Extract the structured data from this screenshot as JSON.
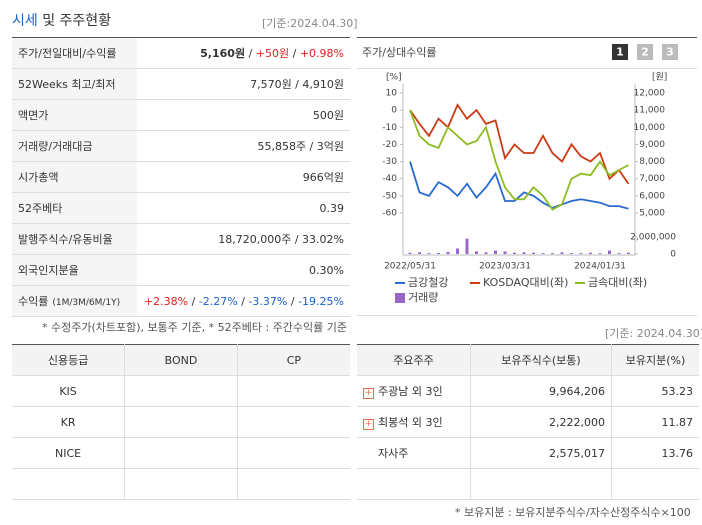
{
  "header": {
    "title_highlight": "시세",
    "title_rest": "및 주주현황",
    "date": "[기준:2024.04.30]"
  },
  "summary": {
    "rows": [
      {
        "label": [
          "주가/전일대비/수익률"
        ],
        "value": [
          "5,160원",
          " / ",
          "+50원",
          " / ",
          "+0.98%"
        ]
      },
      {
        "label": [
          "52Weeks 최고/최저"
        ],
        "value": [
          "7,570원 / 4,910원"
        ]
      },
      {
        "label": [
          "액면가"
        ],
        "value": [
          "500원"
        ]
      },
      {
        "label": [
          "거래량/거래대금"
        ],
        "value": [
          "55,858주 / 3억원"
        ]
      },
      {
        "label": [
          "시가총액"
        ],
        "value": [
          "966억원"
        ]
      },
      {
        "label": [
          "52주베타"
        ],
        "value": [
          "0.39"
        ]
      },
      {
        "label": [
          "발행주식수/유동비율"
        ],
        "value": [
          "18,720,000주 / 33.02%"
        ]
      },
      {
        "label": [
          "외국인지분율"
        ],
        "value": [
          "0.30%"
        ]
      },
      {
        "label": [
          "수익률",
          "(1M/3M/6M/1Y)"
        ],
        "value": [
          "+2.38%",
          " / ",
          "-2.27%",
          " / ",
          "-3.37%",
          " / ",
          "-19.25%"
        ]
      }
    ],
    "note": "* 수정주가(차트포함), 보통주 기준, * 52주베타 : 주간수익률 기준"
  },
  "chart_data": {
    "type": "line",
    "title": "주가/상대수익률",
    "buttons": [
      "1",
      "2",
      "3"
    ],
    "y_unit": "[%]",
    "y2_unit": "[원]",
    "categories": [
      "2022/05/31",
      null,
      null,
      null,
      null,
      null,
      null,
      null,
      null,
      null,
      "2023/03/31",
      null,
      null,
      null,
      null,
      null,
      null,
      null,
      null,
      null,
      "2024/01/31",
      null,
      null,
      null
    ],
    "series": [
      {
        "name": "금강철강",
        "color": "#2a6ad0",
        "axis": "y2",
        "values": [
          8000,
          6200,
          6000,
          6800,
          6500,
          6000,
          6700,
          5900,
          6500,
          7300,
          5700,
          5700,
          6200,
          6000,
          5600,
          5300,
          5500,
          5700,
          5800,
          5700,
          5600,
          5400,
          5400,
          5250
        ]
      },
      {
        "name": "KOSDAQ대비(좌)",
        "color": "#cc3a14",
        "values": [
          0,
          -8,
          -15,
          -5,
          -10,
          3,
          -5,
          0,
          -8,
          -6,
          -28,
          -20,
          -25,
          -25,
          -15,
          -25,
          -30,
          -20,
          -27,
          -30,
          -25,
          -40,
          -35,
          -43
        ]
      },
      {
        "name": "금속대비(좌)",
        "color": "#8cbc1e",
        "values": [
          0,
          -15,
          -20,
          -22,
          -10,
          -15,
          -20,
          -18,
          -10,
          -30,
          -45,
          -52,
          -52,
          -45,
          -50,
          -58,
          -55,
          -40,
          -37,
          -38,
          -30,
          -38,
          -35,
          -32
        ]
      },
      {
        "name": "거래량",
        "color": "#9966cc",
        "type": "bar",
        "axis": "y3",
        "values": [
          150000,
          200000,
          100000,
          120000,
          250000,
          650000,
          1800000,
          300000,
          200000,
          400000,
          300000,
          150000,
          200000,
          150000,
          100000,
          100000,
          200000,
          100000,
          100000,
          150000,
          100000,
          400000,
          100000,
          150000
        ]
      }
    ],
    "ylim": [
      -60,
      10
    ],
    "yticks": [
      10,
      0,
      -10,
      -20,
      -30,
      -40,
      -50,
      -60
    ],
    "y2lim": [
      5000,
      12000
    ],
    "y2ticks": [
      {
        "value": 12000,
        "label": "12,000"
      },
      {
        "value": 11000,
        "label": "11,000"
      },
      {
        "value": 10000,
        "label": "10,000"
      },
      {
        "value": 9000,
        "label": "9,000"
      },
      {
        "value": 8000,
        "label": "8,000"
      },
      {
        "value": 7000,
        "label": "7,000"
      },
      {
        "value": 6000,
        "label": "6,000"
      },
      {
        "value": 5000,
        "label": "5,000"
      }
    ],
    "y3lim": [
      0,
      2000000
    ],
    "y3ticks": [
      {
        "value": 2000000,
        "label": "2,000,000"
      },
      0
    ]
  },
  "credit": {
    "header": [
      "신용등급",
      "BOND",
      "CP"
    ],
    "rows": [
      [
        "KIS"
      ],
      [
        "KR"
      ],
      [
        "NICE"
      ],
      []
    ]
  },
  "holders": {
    "date": "[기준: 2024.04.30]",
    "header": [
      "주요주주",
      "보유주식수(보통)",
      "보유지분(%)"
    ],
    "rows": [
      {
        "expandable": true,
        "cells": [
          "주광남 외 3인",
          "9,964,206",
          "53.23"
        ]
      },
      {
        "expandable": true,
        "cells": [
          "최봉석 외 3인",
          "2,222,000",
          "11.87"
        ]
      },
      {
        "expandable": false,
        "cells": [
          "자사주",
          "2,575,017",
          "13.76"
        ]
      },
      {
        "expandable": false,
        "cells": []
      }
    ],
    "note": "* 보유지분 : 보유지분주식수/자수산정주식수×100"
  }
}
